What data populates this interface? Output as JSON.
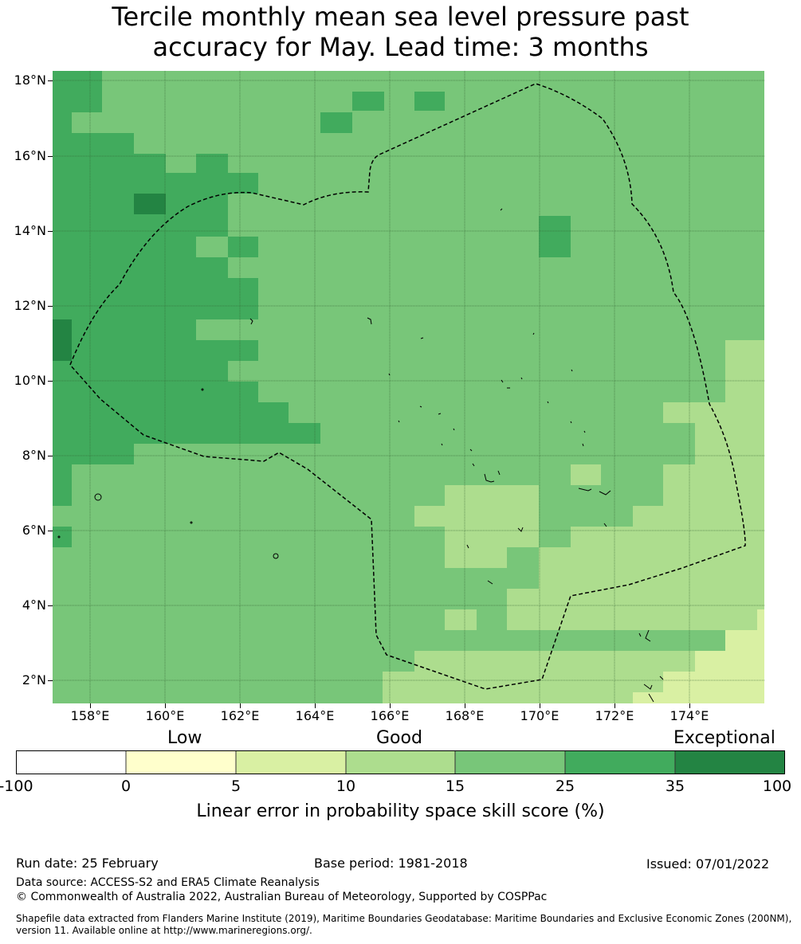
{
  "title": {
    "line1": "Tercile monthly mean sea level pressure past",
    "line2": "accuracy for May. Lead time: 3 months"
  },
  "map": {
    "lat_labels": [
      "18°N",
      "16°N",
      "14°N",
      "12°N",
      "10°N",
      "8°N",
      "6°N",
      "4°N",
      "2°N"
    ],
    "lon_labels": [
      "158°E",
      "160°E",
      "162°E",
      "164°E",
      "166°E",
      "168°E",
      "170°E",
      "172°E",
      "174°E"
    ],
    "lat_range": [
      1.35,
      18.35
    ],
    "lon_range": [
      157.0,
      176.0
    ],
    "lat_values": [
      18,
      16,
      14,
      12,
      10,
      8,
      6,
      4,
      2
    ],
    "lon_values": [
      158,
      160,
      162,
      164,
      166,
      168,
      170,
      172,
      174
    ],
    "colors": {
      "c1": "#ffffcc",
      "c2": "#d9f0a3",
      "c3": "#addd8e",
      "c4": "#78c679",
      "c5": "#41ab5d",
      "c6": "#238443"
    }
  },
  "colorbar": {
    "categories": [
      "Low",
      "Good",
      "Exceptional"
    ],
    "boundaries": [
      "-100",
      "0",
      "5",
      "10",
      "15",
      "25",
      "35",
      "100"
    ],
    "colors": [
      "#ffffff",
      "#ffffcc",
      "#d9f0a3",
      "#addd8e",
      "#78c679",
      "#41ab5d",
      "#238443"
    ],
    "label": "Linear error in probability space skill score (%)"
  },
  "footer": {
    "run_date": "Run date: 25 February",
    "base_period": "Base period: 1981-2018",
    "issued": "Issued: 07/01/2022",
    "data_source": "Data source: ACCESS-S2 and ERA5 Climate Reanalysis",
    "copyright": "© Commonwealth of Australia 2022, Australian Bureau of Meteorology, Supported by COSPPac",
    "shapefile_line1": "Shapefile data extracted from Flanders Marine Institute (2019), Maritime Boundaries Geodatabase: Maritime Boundaries and Exclusive Economic Zones (200NM),",
    "shapefile_line2": "version 11. Available online at http://www.marineregions.org/."
  }
}
